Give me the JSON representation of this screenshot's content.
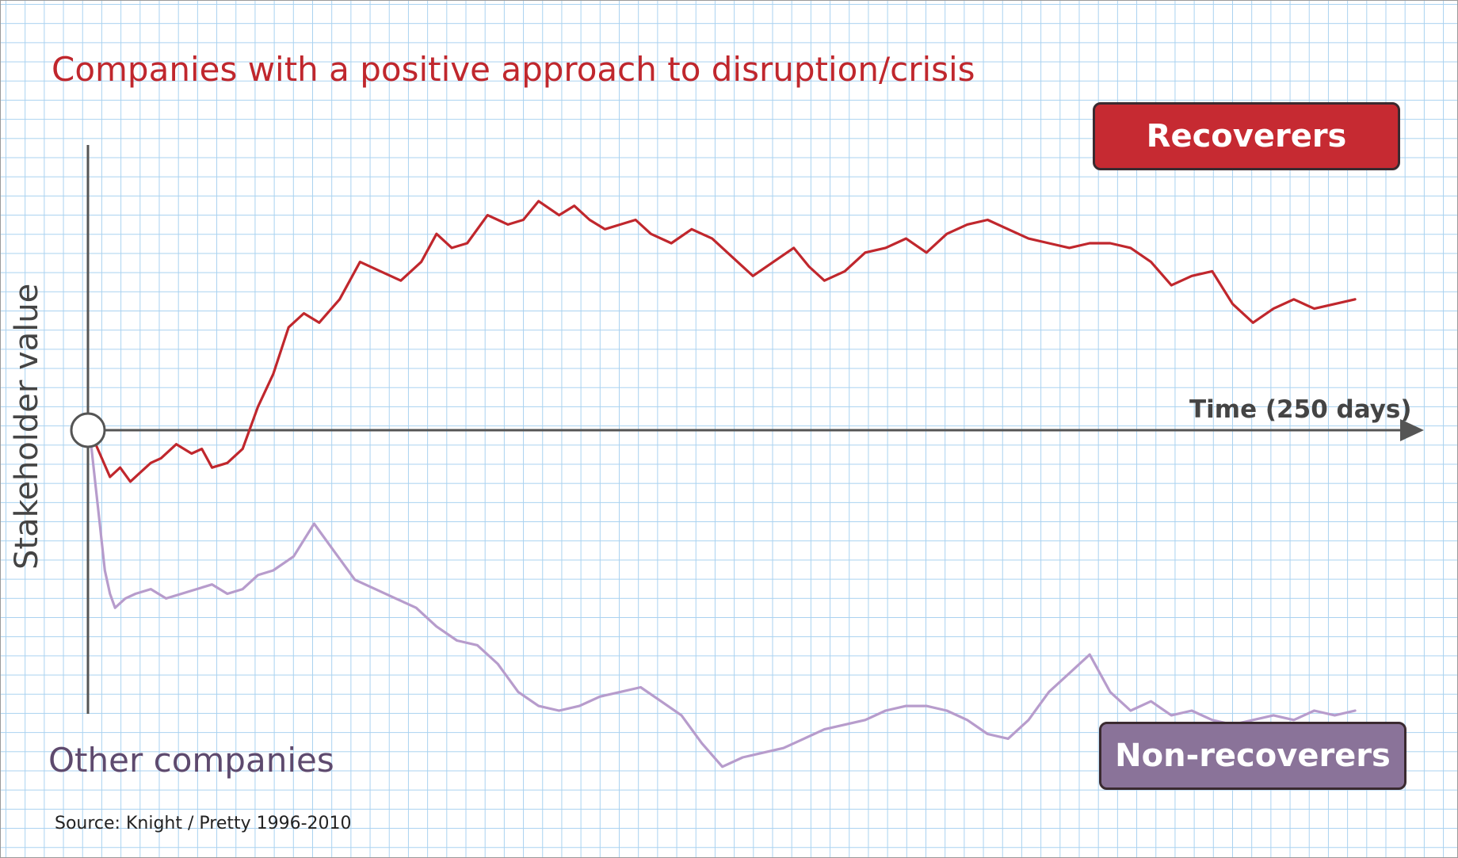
{
  "title": "Companies with a positive approach to disruption/crisis",
  "other_companies": "Other companies",
  "source": "Source: Knight / Pretty 1996-2010",
  "colors": {
    "recoverers": "#c0272d",
    "non_recoverers": "#b79ccc",
    "axis": "#555555",
    "grid": "#a9d2f0"
  },
  "chart_data": {
    "type": "line",
    "title": "",
    "xlabel": "Time (250 days)",
    "ylabel": "Stakeholder value",
    "xlim": [
      0,
      250
    ],
    "ylim": [
      -8,
      7
    ],
    "grid": true,
    "legend": [
      {
        "name": "Recoverers",
        "color": "#c62a32",
        "position": "top-right"
      },
      {
        "name": "Non-recoverers",
        "color": "#8a7399",
        "position": "bottom-right"
      }
    ],
    "series": [
      {
        "name": "Recoverers",
        "color": "#c0272d",
        "x": [
          0,
          2,
          4,
          6,
          8,
          10,
          12,
          14,
          17,
          20,
          22,
          24,
          27,
          30,
          33,
          36,
          39,
          42,
          45,
          49,
          53,
          57,
          61,
          65,
          68,
          71,
          74,
          78,
          82,
          85,
          88,
          92,
          95,
          98,
          101,
          104,
          107,
          110,
          114,
          118,
          122,
          126,
          130,
          134,
          138,
          141,
          144,
          148,
          152,
          156,
          160,
          164,
          168,
          172,
          176,
          180,
          184,
          188,
          192,
          196,
          200,
          204,
          208,
          212,
          216,
          220,
          224,
          228,
          232,
          236,
          240,
          244,
          248
        ],
        "y": [
          0,
          -0.5,
          -1.0,
          -0.8,
          -1.1,
          -0.9,
          -0.7,
          -0.6,
          -0.3,
          -0.5,
          -0.4,
          -0.8,
          -0.7,
          -0.4,
          0.5,
          1.2,
          2.2,
          2.5,
          2.3,
          2.8,
          3.6,
          3.4,
          3.2,
          3.6,
          4.2,
          3.9,
          4.0,
          4.6,
          4.4,
          4.5,
          4.9,
          4.6,
          4.8,
          4.5,
          4.3,
          4.4,
          4.5,
          4.2,
          4.0,
          4.3,
          4.1,
          3.7,
          3.3,
          3.6,
          3.9,
          3.5,
          3.2,
          3.4,
          3.8,
          3.9,
          4.1,
          3.8,
          4.2,
          4.4,
          4.5,
          4.3,
          4.1,
          4.0,
          3.9,
          4.0,
          4.0,
          3.9,
          3.6,
          3.1,
          3.3,
          3.4,
          2.7,
          2.3,
          2.6,
          2.8,
          2.6,
          2.7,
          2.8
        ]
      },
      {
        "name": "Non-recoverers",
        "color": "#b79ccc",
        "x": [
          0,
          1,
          2,
          3,
          4,
          5,
          7,
          9,
          12,
          15,
          18,
          21,
          24,
          27,
          30,
          33,
          36,
          40,
          44,
          48,
          52,
          56,
          60,
          64,
          68,
          72,
          76,
          80,
          84,
          88,
          92,
          96,
          100,
          104,
          108,
          112,
          116,
          120,
          124,
          128,
          132,
          136,
          140,
          144,
          148,
          152,
          156,
          160,
          164,
          168,
          172,
          176,
          180,
          184,
          188,
          192,
          196,
          200,
          204,
          208,
          212,
          216,
          220,
          224,
          228,
          232,
          236,
          240,
          244,
          248
        ],
        "y": [
          0,
          -1.0,
          -2.0,
          -3.0,
          -3.5,
          -3.8,
          -3.6,
          -3.5,
          -3.4,
          -3.6,
          -3.5,
          -3.4,
          -3.3,
          -3.5,
          -3.4,
          -3.1,
          -3.0,
          -2.7,
          -2.0,
          -2.6,
          -3.2,
          -3.4,
          -3.6,
          -3.8,
          -4.2,
          -4.5,
          -4.6,
          -5.0,
          -5.6,
          -5.9,
          -6.0,
          -5.9,
          -5.7,
          -5.6,
          -5.5,
          -5.8,
          -6.1,
          -6.7,
          -7.2,
          -7.0,
          -6.9,
          -6.8,
          -6.6,
          -6.4,
          -6.3,
          -6.2,
          -6.0,
          -5.9,
          -5.9,
          -6.0,
          -6.2,
          -6.5,
          -6.6,
          -6.2,
          -5.6,
          -5.2,
          -4.8,
          -5.6,
          -6.0,
          -5.8,
          -6.1,
          -6.0,
          -6.2,
          -6.3,
          -6.2,
          -6.1,
          -6.2,
          -6.0,
          -6.1,
          -6.0
        ]
      }
    ]
  }
}
